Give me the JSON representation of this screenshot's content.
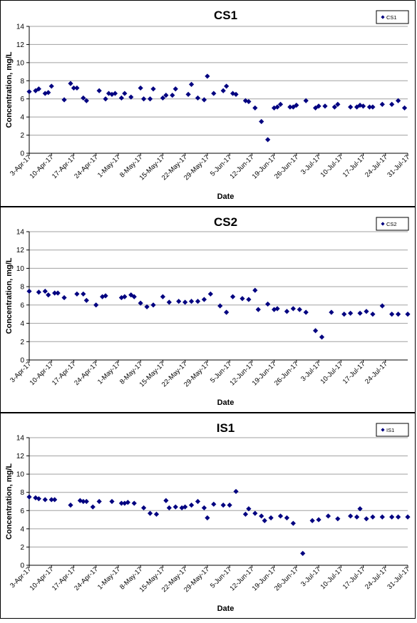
{
  "chart_data": [
    {
      "type": "scatter",
      "title": "CS1",
      "xlabel": "Date",
      "ylabel": "Concentration, mg/L",
      "ylim": [
        0,
        14
      ],
      "yticks": [
        0,
        2,
        4,
        6,
        8,
        10,
        12,
        14
      ],
      "xlim": [
        "3-Apr-17",
        "31-Jul-17"
      ],
      "xticks": [
        "3-Apr-17",
        "10-Apr-17",
        "17-Apr-17",
        "24-Apr-17",
        "1-May-17",
        "8-May-17",
        "15-May-17",
        "22-May-17",
        "29-May-17",
        "5-Jun-17",
        "12-Jun-17",
        "19-Jun-17",
        "26-Jun-17",
        "3-Jul-17",
        "10-Jul-17",
        "17-Jul-17",
        "24-Jul-17",
        "31-Jul-17"
      ],
      "grid": "horizontal",
      "legend": "top-right",
      "series": [
        {
          "name": "CS1",
          "color": "#000080",
          "marker": "diamond",
          "x": [
            "3-Apr-17",
            "5-Apr-17",
            "6-Apr-17",
            "8-Apr-17",
            "9-Apr-17",
            "10-Apr-17",
            "14-Apr-17",
            "16-Apr-17",
            "17-Apr-17",
            "18-Apr-17",
            "20-Apr-17",
            "21-Apr-17",
            "25-Apr-17",
            "27-Apr-17",
            "28-Apr-17",
            "29-Apr-17",
            "30-Apr-17",
            "2-May-17",
            "3-May-17",
            "5-May-17",
            "8-May-17",
            "9-May-17",
            "11-May-17",
            "12-May-17",
            "15-May-17",
            "16-May-17",
            "18-May-17",
            "19-May-17",
            "23-May-17",
            "24-May-17",
            "26-May-17",
            "28-May-17",
            "29-May-17",
            "31-May-17",
            "3-Jun-17",
            "4-Jun-17",
            "6-Jun-17",
            "7-Jun-17",
            "10-Jun-17",
            "11-Jun-17",
            "13-Jun-17",
            "15-Jun-17",
            "17-Jun-17",
            "19-Jun-17",
            "20-Jun-17",
            "21-Jun-17",
            "24-Jun-17",
            "25-Jun-17",
            "26-Jun-17",
            "29-Jun-17",
            "2-Jul-17",
            "3-Jul-17",
            "5-Jul-17",
            "8-Jul-17",
            "9-Jul-17",
            "13-Jul-17",
            "15-Jul-17",
            "16-Jul-17",
            "17-Jul-17",
            "19-Jul-17",
            "20-Jul-17",
            "23-Jul-17",
            "26-Jul-17",
            "28-Jul-17",
            "30-Jul-17"
          ],
          "y": [
            6.8,
            6.9,
            7.1,
            6.6,
            6.7,
            7.4,
            5.9,
            7.7,
            7.2,
            7.2,
            6.1,
            5.8,
            6.9,
            6.0,
            6.6,
            6.5,
            6.6,
            6.1,
            6.6,
            6.2,
            7.2,
            6.0,
            6.0,
            7.1,
            6.1,
            6.4,
            6.4,
            7.1,
            6.5,
            7.6,
            6.1,
            5.9,
            8.5,
            6.6,
            6.9,
            7.4,
            6.6,
            6.5,
            5.8,
            5.7,
            5.0,
            3.5,
            1.5,
            5.0,
            5.1,
            5.4,
            5.1,
            5.1,
            5.3,
            5.8,
            5.0,
            5.2,
            5.2,
            5.1,
            5.4,
            5.1,
            5.1,
            5.3,
            5.2,
            5.1,
            5.1,
            5.4,
            5.4,
            5.8,
            5.0
          ]
        }
      ]
    },
    {
      "type": "scatter",
      "title": "CS2",
      "xlabel": "Date",
      "ylabel": "Concentration, mg/L",
      "ylim": [
        0,
        14
      ],
      "yticks": [
        0,
        2,
        4,
        6,
        8,
        10,
        12,
        14
      ],
      "xlim": [
        "3-Apr-17",
        "31-Jul-17"
      ],
      "xticks": [
        "3-Apr-17",
        "10-Apr-17",
        "17-Apr-17",
        "24-Apr-17",
        "1-May-17",
        "8-May-17",
        "15-May-17",
        "22-May-17",
        "29-May-17",
        "5-Jun-17",
        "12-Jun-17",
        "19-Jun-17",
        "26-Jun-17",
        "3-Jul-17",
        "10-Jul-17",
        "17-Jul-17",
        "24-Jul-17"
      ],
      "grid": "horizontal",
      "legend": "top-right",
      "series": [
        {
          "name": "CS2",
          "color": "#000080",
          "marker": "diamond",
          "x": [
            "3-Apr-17",
            "6-Apr-17",
            "8-Apr-17",
            "9-Apr-17",
            "11-Apr-17",
            "12-Apr-17",
            "14-Apr-17",
            "18-Apr-17",
            "20-Apr-17",
            "21-Apr-17",
            "24-Apr-17",
            "26-Apr-17",
            "27-Apr-17",
            "2-May-17",
            "3-May-17",
            "5-May-17",
            "6-May-17",
            "8-May-17",
            "10-May-17",
            "12-May-17",
            "15-May-17",
            "17-May-17",
            "20-May-17",
            "22-May-17",
            "24-May-17",
            "26-May-17",
            "28-May-17",
            "30-May-17",
            "2-Jun-17",
            "4-Jun-17",
            "6-Jun-17",
            "9-Jun-17",
            "11-Jun-17",
            "13-Jun-17",
            "14-Jun-17",
            "17-Jun-17",
            "19-Jun-17",
            "20-Jun-17",
            "23-Jun-17",
            "25-Jun-17",
            "27-Jun-17",
            "29-Jun-17",
            "2-Jul-17",
            "4-Jul-17",
            "7-Jul-17",
            "11-Jul-17",
            "13-Jul-17",
            "16-Jul-17",
            "18-Jul-17",
            "20-Jul-17",
            "23-Jul-17",
            "26-Jul-17",
            "28-Jul-17",
            "31-Jul-17"
          ],
          "y": [
            7.5,
            7.4,
            7.5,
            7.1,
            7.3,
            7.3,
            6.8,
            7.2,
            7.2,
            6.5,
            6.0,
            6.9,
            7.0,
            6.8,
            6.9,
            7.1,
            6.9,
            6.2,
            5.8,
            6.0,
            6.9,
            6.3,
            6.4,
            6.3,
            6.4,
            6.4,
            6.6,
            7.2,
            5.9,
            5.2,
            6.9,
            6.7,
            6.6,
            7.6,
            5.5,
            6.1,
            5.5,
            5.6,
            5.3,
            5.6,
            5.5,
            5.2,
            3.2,
            2.5,
            5.2,
            5.0,
            5.1,
            5.1,
            5.3,
            5.0,
            5.9,
            5.0,
            5.0,
            5.0
          ]
        }
      ]
    },
    {
      "type": "scatter",
      "title": "IS1",
      "xlabel": "Date",
      "ylabel": "Concentration, mg/L",
      "ylim": [
        0,
        14
      ],
      "yticks": [
        0,
        2,
        4,
        6,
        8,
        10,
        12,
        14
      ],
      "xlim": [
        "3-Apr-17",
        "31-Jul-17"
      ],
      "xticks": [
        "3-Apr-17",
        "10-Apr-17",
        "17-Apr-17",
        "24-Apr-17",
        "1-May-17",
        "8-May-17",
        "15-May-17",
        "22-May-17",
        "29-May-17",
        "5-Jun-17",
        "12-Jun-17",
        "19-Jun-17",
        "26-Jun-17",
        "3-Jul-17",
        "10-Jul-17",
        "17-Jul-17",
        "24-Jul-17",
        "31-Jul-17"
      ],
      "grid": "horizontal",
      "legend": "top-right",
      "series": [
        {
          "name": "IS1",
          "color": "#000080",
          "marker": "diamond",
          "x": [
            "3-Apr-17",
            "5-Apr-17",
            "6-Apr-17",
            "8-Apr-17",
            "10-Apr-17",
            "11-Apr-17",
            "16-Apr-17",
            "19-Apr-17",
            "20-Apr-17",
            "21-Apr-17",
            "23-Apr-17",
            "25-Apr-17",
            "29-Apr-17",
            "2-May-17",
            "3-May-17",
            "4-May-17",
            "6-May-17",
            "9-May-17",
            "11-May-17",
            "13-May-17",
            "16-May-17",
            "17-May-17",
            "19-May-17",
            "21-May-17",
            "22-May-17",
            "24-May-17",
            "26-May-17",
            "28-May-17",
            "29-May-17",
            "31-May-17",
            "3-Jun-17",
            "5-Jun-17",
            "7-Jun-17",
            "10-Jun-17",
            "11-Jun-17",
            "13-Jun-17",
            "15-Jun-17",
            "16-Jun-17",
            "18-Jun-17",
            "21-Jun-17",
            "23-Jun-17",
            "25-Jun-17",
            "28-Jun-17",
            "1-Jul-17",
            "3-Jul-17",
            "6-Jul-17",
            "9-Jul-17",
            "13-Jul-17",
            "15-Jul-17",
            "16-Jul-17",
            "18-Jul-17",
            "20-Jul-17",
            "23-Jul-17",
            "26-Jul-17",
            "28-Jul-17",
            "31-Jul-17"
          ],
          "y": [
            7.5,
            7.4,
            7.3,
            7.2,
            7.2,
            7.2,
            6.6,
            7.1,
            7.0,
            7.0,
            6.4,
            7.0,
            7.0,
            6.8,
            6.8,
            6.9,
            6.8,
            6.3,
            5.7,
            5.6,
            7.1,
            6.3,
            6.4,
            6.3,
            6.4,
            6.6,
            7.0,
            6.3,
            5.2,
            6.7,
            6.6,
            6.6,
            8.1,
            5.6,
            6.2,
            5.7,
            5.4,
            4.9,
            5.2,
            5.4,
            5.2,
            4.6,
            1.3,
            4.9,
            5.0,
            5.4,
            5.1,
            5.4,
            5.3,
            6.2,
            5.1,
            5.3,
            5.3,
            5.3,
            5.3,
            5.3
          ]
        }
      ]
    }
  ]
}
